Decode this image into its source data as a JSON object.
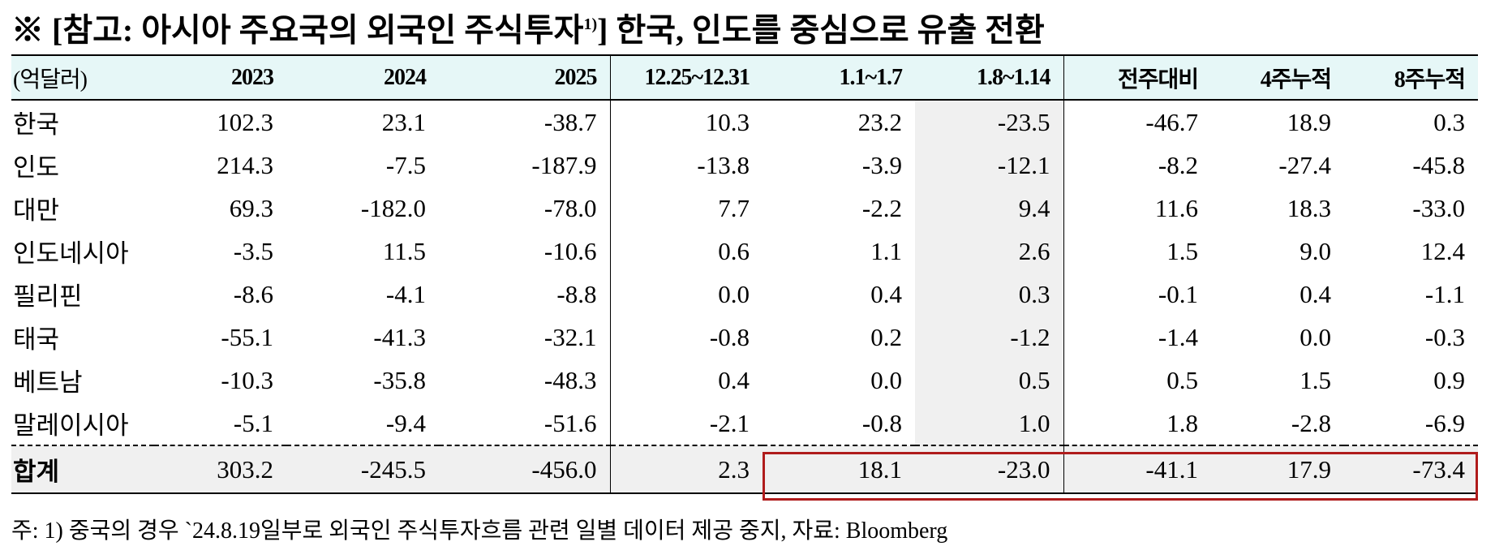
{
  "title": {
    "main": "※ [참고: 아시아 주요국의 외국인 주식투자",
    "sup": "1)",
    "rest": "] 한국, 인도를 중심으로 유출 전환"
  },
  "table": {
    "header": [
      "(억달러)",
      "2023",
      "2024",
      "2025",
      "12.25~12.31",
      "1.1~1.7",
      "1.8~1.14",
      "전주대비",
      "4주누적",
      "8주누적"
    ],
    "rows": [
      [
        "한국",
        "102.3",
        "23.1",
        "-38.7",
        "10.3",
        "23.2",
        "-23.5",
        "-46.7",
        "18.9",
        "0.3"
      ],
      [
        "인도",
        "214.3",
        "-7.5",
        "-187.9",
        "-13.8",
        "-3.9",
        "-12.1",
        "-8.2",
        "-27.4",
        "-45.8"
      ],
      [
        "대만",
        "69.3",
        "-182.0",
        "-78.0",
        "7.7",
        "-2.2",
        "9.4",
        "11.6",
        "18.3",
        "-33.0"
      ],
      [
        "인도네시아",
        "-3.5",
        "11.5",
        "-10.6",
        "0.6",
        "1.1",
        "2.6",
        "1.5",
        "9.0",
        "12.4"
      ],
      [
        "필리핀",
        "-8.6",
        "-4.1",
        "-8.8",
        "0.0",
        "0.4",
        "0.3",
        "-0.1",
        "0.4",
        "-1.1"
      ],
      [
        "태국",
        "-55.1",
        "-41.3",
        "-32.1",
        "-0.8",
        "0.2",
        "-1.2",
        "-1.4",
        "0.0",
        "-0.3"
      ],
      [
        "베트남",
        "-10.3",
        "-35.8",
        "-48.3",
        "0.4",
        "0.0",
        "0.5",
        "0.5",
        "1.5",
        "0.9"
      ],
      [
        "말레이시아",
        "-5.1",
        "-9.4",
        "-51.6",
        "-2.1",
        "-0.8",
        "1.0",
        "1.8",
        "-2.8",
        "-6.9"
      ],
      [
        "합계",
        "303.2",
        "-245.5",
        "-456.0",
        "2.3",
        "18.1",
        "-23.0",
        "-41.1",
        "17.9",
        "-73.4"
      ]
    ]
  },
  "footnote": "주: 1) 중국의 경우 `24.8.19일부로 외국인 주식투자흐름 관련 일별 데이터 제공 중지, 자료: Bloomberg"
}
